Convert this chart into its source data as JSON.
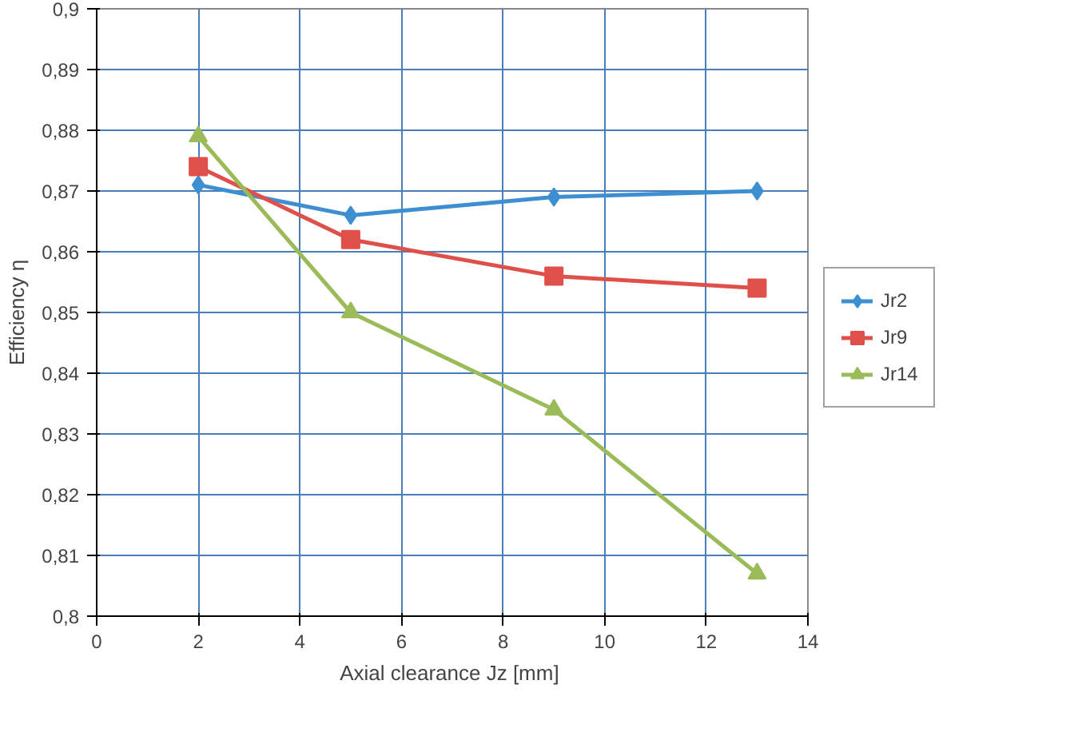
{
  "chart_data": {
    "type": "line",
    "xlabel": "Axial clearance  Jz [mm]",
    "ylabel": "Efficiency η",
    "x": [
      2,
      5,
      9,
      13
    ],
    "series": [
      {
        "name": "Jr2",
        "color": "#3d8fd1",
        "marker": "diamond",
        "values": [
          0.871,
          0.866,
          0.869,
          0.87
        ]
      },
      {
        "name": "Jr9",
        "color": "#e0504a",
        "marker": "square",
        "values": [
          0.874,
          0.862,
          0.856,
          0.854
        ]
      },
      {
        "name": "Jr14",
        "color": "#9bbb59",
        "marker": "triangle",
        "values": [
          0.879,
          0.85,
          0.834,
          0.807
        ]
      }
    ],
    "xlim": [
      0,
      14
    ],
    "xticks": [
      0,
      2,
      4,
      6,
      8,
      10,
      12,
      14
    ],
    "ylim": [
      0.8,
      0.9
    ],
    "yticks": [
      {
        "value": 0.8,
        "label": "0,8"
      },
      {
        "value": 0.81,
        "label": "0,81"
      },
      {
        "value": 0.82,
        "label": "0,82"
      },
      {
        "value": 0.83,
        "label": "0,83"
      },
      {
        "value": 0.84,
        "label": "0,84"
      },
      {
        "value": 0.85,
        "label": "0,85"
      },
      {
        "value": 0.86,
        "label": "0,86"
      },
      {
        "value": 0.87,
        "label": "0,87"
      },
      {
        "value": 0.88,
        "label": "0,88"
      },
      {
        "value": 0.89,
        "label": "0,89"
      },
      {
        "value": 0.9,
        "label": "0,9"
      }
    ],
    "grid": true,
    "legend": "right",
    "line_style": "solid"
  }
}
